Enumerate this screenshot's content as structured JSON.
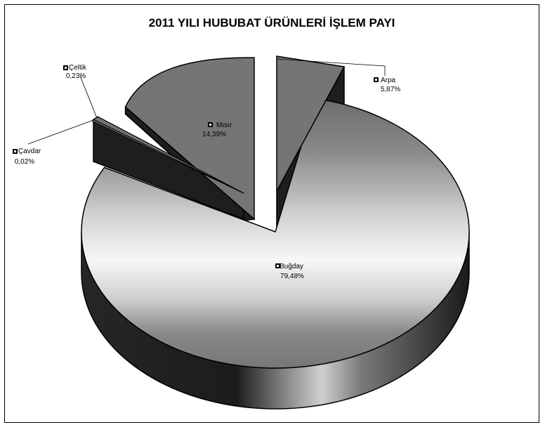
{
  "chart_data": {
    "type": "pie",
    "title": "2011 YILI HUBUBAT ÜRÜNLERİ İŞLEM PAYI",
    "three_d": true,
    "exploded": true,
    "fill_color": "#757575",
    "dark_color": "#1e1e1e",
    "slices": [
      {
        "name": "Buğday",
        "label": "Buğday",
        "value": 79.48,
        "value_label": "79,48%"
      },
      {
        "name": "Arpa",
        "label": "Arpa",
        "value": 5.87,
        "value_label": "5,87%"
      },
      {
        "name": "Mısır",
        "label": "Mısır",
        "value": 14.39,
        "value_label": "14,39%"
      },
      {
        "name": "Çeltik",
        "label": "Çeltik",
        "value": 0.23,
        "value_label": "0,23%"
      },
      {
        "name": "Çavdar",
        "label": "Çavdar",
        "value": 0.02,
        "value_label": "0,02%"
      }
    ]
  }
}
